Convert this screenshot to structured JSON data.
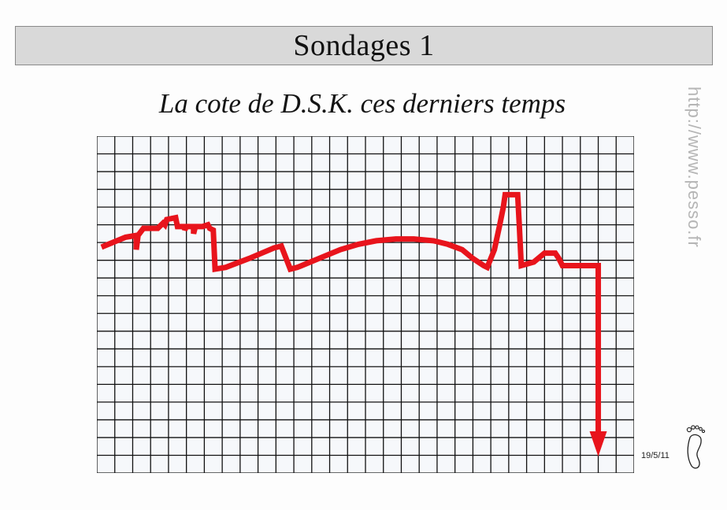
{
  "header": {
    "title": "Sondages 1"
  },
  "subtitle": "La cote de D.S.K. ces derniers temps",
  "side_url": "http://www.pesso.fr",
  "signature": {
    "date": "19/5/11"
  },
  "colors": {
    "banner": "#d9d9d9",
    "line": "#e8141c",
    "grid": "#111111",
    "grid_background": "#f6f8fb"
  },
  "icons": {
    "logo": "footprint-icon"
  },
  "chart_data": {
    "type": "line",
    "title": "La cote de D.S.K. ces derniers temps",
    "xlabel": "",
    "ylabel": "",
    "grid": true,
    "x_range": [
      0,
      30
    ],
    "y_range": [
      0,
      19
    ],
    "series": [
      {
        "values": [
          [
            0.4,
            12.8
          ],
          [
            1.6,
            13.3
          ],
          [
            2.2,
            13.4
          ],
          [
            2.2,
            12.6
          ],
          [
            2.3,
            13.4
          ],
          [
            2.6,
            13.8
          ],
          [
            3.4,
            13.8
          ],
          [
            3.6,
            14.0
          ],
          [
            3.7,
            14.1
          ],
          [
            3.8,
            14.0
          ],
          [
            3.9,
            14.3
          ],
          [
            4.4,
            14.4
          ],
          [
            4.5,
            13.9
          ],
          [
            4.7,
            13.9
          ],
          [
            4.9,
            13.9
          ],
          [
            4.9,
            13.7
          ],
          [
            5.0,
            13.9
          ],
          [
            5.4,
            13.9
          ],
          [
            5.4,
            13.5
          ],
          [
            5.5,
            13.9
          ],
          [
            5.9,
            13.9
          ],
          [
            6.2,
            14.0
          ],
          [
            6.3,
            13.8
          ],
          [
            6.5,
            13.7
          ],
          [
            6.6,
            11.5
          ],
          [
            7.2,
            11.6
          ],
          [
            8.5,
            12.1
          ],
          [
            9.9,
            12.7
          ],
          [
            10.3,
            12.8
          ],
          [
            10.8,
            11.5
          ],
          [
            11.2,
            11.6
          ],
          [
            12.4,
            12.1
          ],
          [
            13.6,
            12.6
          ],
          [
            14.6,
            12.9
          ],
          [
            15.6,
            13.1
          ],
          [
            16.7,
            13.2
          ],
          [
            17.7,
            13.2
          ],
          [
            18.8,
            13.1
          ],
          [
            19.6,
            12.9
          ],
          [
            20.4,
            12.6
          ],
          [
            21.0,
            12.1
          ],
          [
            21.6,
            11.7
          ],
          [
            21.8,
            11.6
          ],
          [
            22.2,
            12.6
          ],
          [
            22.5,
            14.0
          ],
          [
            22.7,
            15.0
          ],
          [
            22.8,
            15.7
          ],
          [
            23.5,
            15.7
          ],
          [
            23.6,
            13.8
          ],
          [
            23.7,
            11.7
          ],
          [
            24.4,
            11.9
          ],
          [
            25.0,
            12.4
          ],
          [
            25.6,
            12.4
          ],
          [
            25.8,
            12.1
          ],
          [
            26.0,
            11.7
          ],
          [
            26.6,
            11.7
          ],
          [
            27.5,
            11.7
          ],
          [
            28.0,
            11.7
          ],
          [
            28.0,
            5.0
          ],
          [
            28.0,
            1.2
          ]
        ]
      }
    ]
  }
}
